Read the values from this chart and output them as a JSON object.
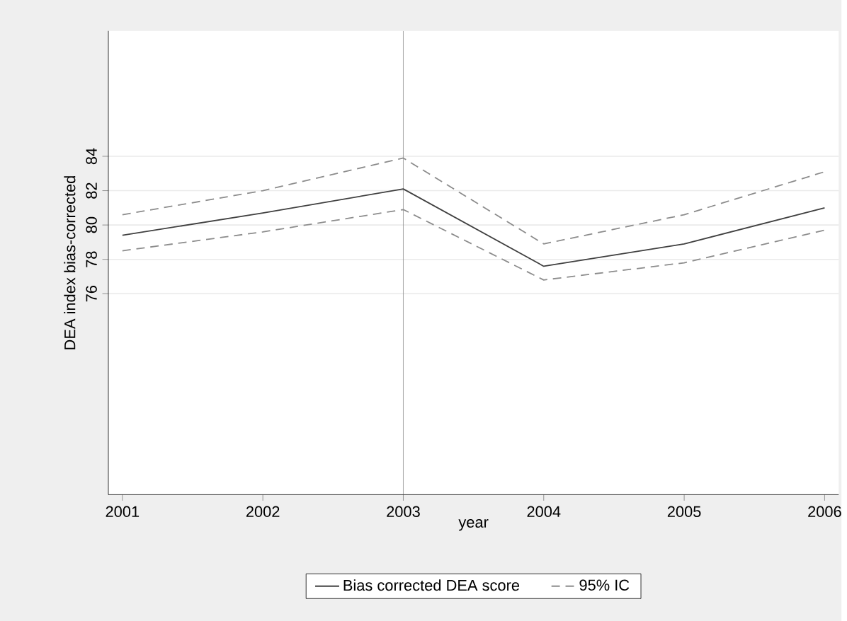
{
  "chart_data": {
    "type": "line",
    "xlabel": "year",
    "ylabel": "DEA index bias-corrected",
    "x": [
      2001,
      2002,
      2003,
      2004,
      2005,
      2006
    ],
    "series": [
      {
        "name": "Bias corrected DEA score",
        "color": "#404040",
        "line_style": "solid",
        "values": [
          79.4,
          80.7,
          82.1,
          77.6,
          78.9,
          81.0
        ]
      },
      {
        "name": "95% IC",
        "color": "#8c8c8c",
        "line_style": "dashed",
        "values": [
          80.6,
          82.0,
          83.9,
          78.9,
          80.6,
          83.1
        ]
      },
      {
        "color": "#8c8c8c",
        "line_style": "dashed",
        "values": [
          78.5,
          79.6,
          80.9,
          76.8,
          77.8,
          79.7
        ]
      }
    ],
    "xlim": [
      2000.9,
      2006.1
    ],
    "xticks": [
      2001,
      2002,
      2003,
      2004,
      2005,
      2006
    ],
    "ylim": [
      64.3,
      91.3
    ],
    "yticks": [
      76,
      78,
      80,
      82,
      84
    ],
    "ref_lines": [
      {
        "axis": "x",
        "value": 2003,
        "color": "#8c8c8c"
      }
    ],
    "grid": "y",
    "legend": "bottom",
    "marker": "none"
  }
}
